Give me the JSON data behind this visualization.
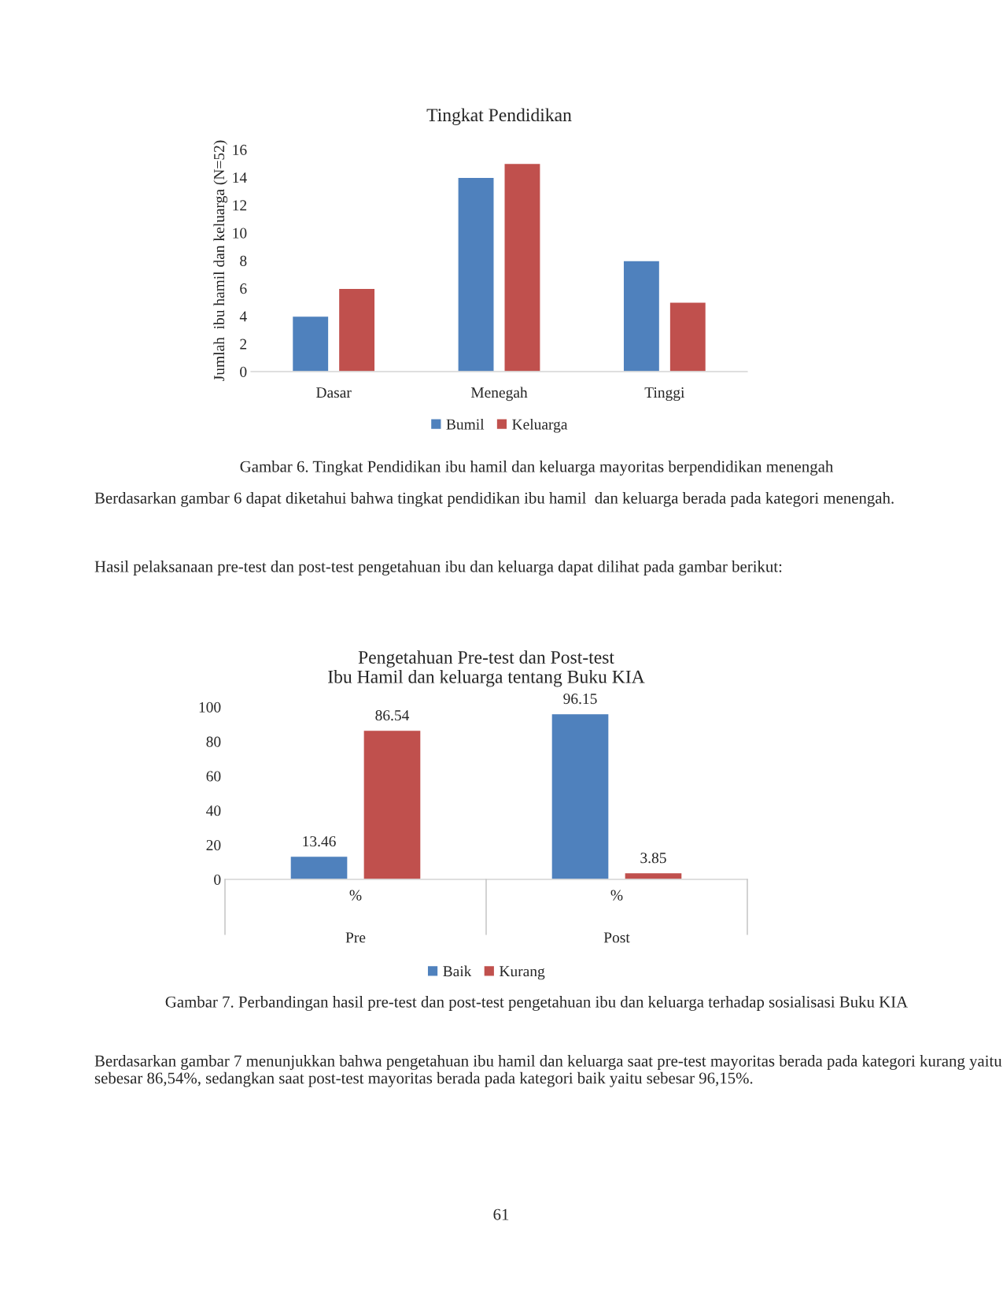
{
  "chart_data": [
    {
      "type": "bar",
      "title": "Tingkat Pendidikan",
      "ylabel": "Jumlah  ibu hamil dan keluarga (N=52)",
      "categories": [
        "Dasar",
        "Menegah",
        "Tinggi"
      ],
      "series": [
        {
          "name": "Bumil",
          "color": "#4f81bd",
          "values": [
            4,
            14,
            8
          ]
        },
        {
          "name": "Keluarga",
          "color": "#c0504d",
          "values": [
            6,
            15,
            5
          ]
        }
      ],
      "ylim": [
        0,
        16
      ],
      "yticks": [
        0,
        2,
        4,
        6,
        8,
        10,
        12,
        14,
        16
      ],
      "legend": "bottom",
      "annotations": [
        "Gambar 6. Tingkat Pendidikan ibu hamil dan keluarga mayoritas berpendidikan menengah",
        "Berdasarkan gambar 6 dapat diketahui bahwa tingkat pendidikan ibu hamil  dan keluarga berada pada kategori menengah.",
        "Hasil pelaksanaan pre-test dan post-test pengetahuan ibu dan keluarga dapat dilihat pada gambar berikut:"
      ]
    },
    {
      "type": "bar",
      "title": "Pengetahuan Pre-test dan Post-test\nIbu Hamil dan keluarga tentang Buku KIA",
      "categories": [
        "Pre",
        "Post"
      ],
      "series": [
        {
          "name": "Baik",
          "color": "#4f81bd",
          "values": [
            13.46,
            96.15
          ]
        },
        {
          "name": "Kurang",
          "color": "#c0504d",
          "values": [
            86.54,
            3.85
          ]
        }
      ],
      "ylim": [
        0,
        100
      ],
      "yticks": [
        0,
        20,
        40,
        60,
        80,
        100
      ],
      "legend": "bottom",
      "data_labels": true,
      "annotations": [
        "%",
        "%",
        "Gambar 7. Perbandingan hasil pre-test dan post-test pengetahuan ibu dan keluarga terhadap sosialisasi Buku KIA",
        "Berdasarkan gambar 7 menunjukkan bahwa pengetahuan ibu hamil dan keluarga saat pre-test mayoritas berada pada kategori kurang yaitu sebesar 86,54%, sedangkan saat post-test mayoritas berada pada kategori baik yaitu sebesar 96,15%.",
        "61"
      ]
    }
  ]
}
